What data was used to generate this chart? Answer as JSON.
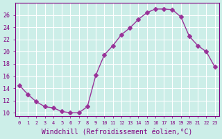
{
  "x": [
    0,
    1,
    2,
    3,
    4,
    5,
    6,
    7,
    8,
    9,
    10,
    11,
    12,
    13,
    14,
    15,
    16,
    17,
    18,
    19,
    20,
    21,
    22,
    23
  ],
  "y": [
    14.5,
    13.0,
    11.8,
    11.0,
    10.8,
    10.2,
    10.0,
    10.0,
    11.0,
    16.2,
    19.5,
    21.0,
    22.8,
    23.9,
    25.3,
    26.4,
    27.0,
    27.0,
    26.9,
    25.7,
    22.5,
    21.0,
    20.0,
    17.5
  ],
  "line_color": "#993399",
  "marker": "D",
  "marker_size": 3,
  "xlabel": "Windchill (Refroidissement éolien,°C)",
  "xlabel_fontsize": 7,
  "ylabel_ticks": [
    10,
    12,
    14,
    16,
    18,
    20,
    22,
    24,
    26
  ],
  "xtick_labels": [
    "0",
    "1",
    "2",
    "3",
    "4",
    "5",
    "6",
    "7",
    "8",
    "9",
    "10",
    "11",
    "12",
    "13",
    "14",
    "15",
    "16",
    "17",
    "18",
    "19",
    "20",
    "21",
    "22",
    "23"
  ],
  "ylim": [
    9.5,
    28.0
  ],
  "xlim": [
    -0.5,
    23.5
  ],
  "bg_color": "#cceee8",
  "grid_color": "#ffffff",
  "tick_color": "#800080",
  "label_color": "#800080"
}
